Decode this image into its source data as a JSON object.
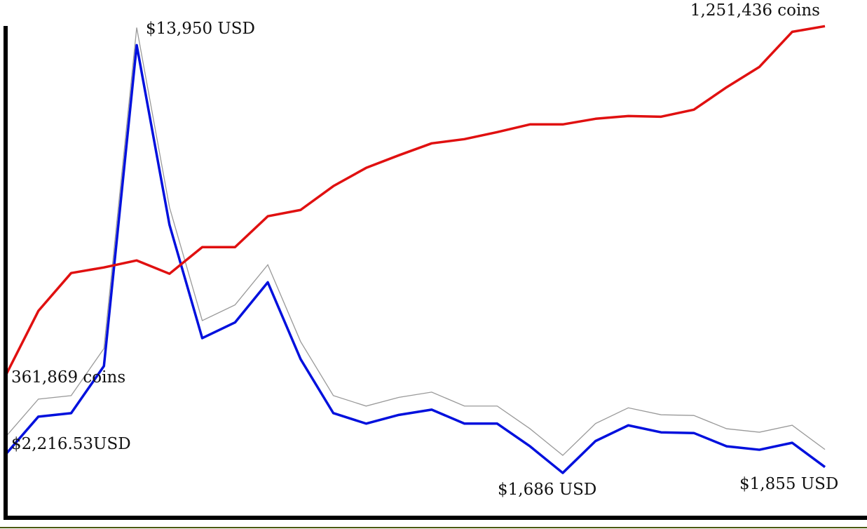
{
  "chart_data": {
    "type": "line",
    "annotations": [
      "$13,950 USD",
      "1,251,436 coins",
      "361,869 coins",
      "$2,216.53USD",
      "$1,686 USD",
      "$1,855 USD"
    ],
    "series": [
      {
        "name": "USD",
        "color": "#0010dd",
        "values": [
          2216.53,
          3300,
          3400,
          4750,
          13950,
          8800,
          5550,
          6000,
          7150,
          4950,
          3400,
          3100,
          3350,
          3500,
          3100,
          3100,
          2450,
          1686,
          2600,
          3050,
          2850,
          2830,
          2450,
          2350,
          2550,
          1855
        ]
      },
      {
        "name": "coins",
        "color": "#e01010",
        "axis": "y2",
        "values": [
          361869,
          526600,
          623000,
          637300,
          655100,
          621200,
          689000,
          689000,
          767600,
          783600,
          844300,
          890700,
          922800,
          953200,
          963900,
          981800,
          1001400,
          1001400,
          1015700,
          1022800,
          1021000,
          1038900,
          1096000,
          1147800,
          1237000,
          1251436
        ]
      }
    ],
    "ylim": [
      400,
      14500
    ],
    "y2lim": [
      0,
      1252000
    ]
  }
}
